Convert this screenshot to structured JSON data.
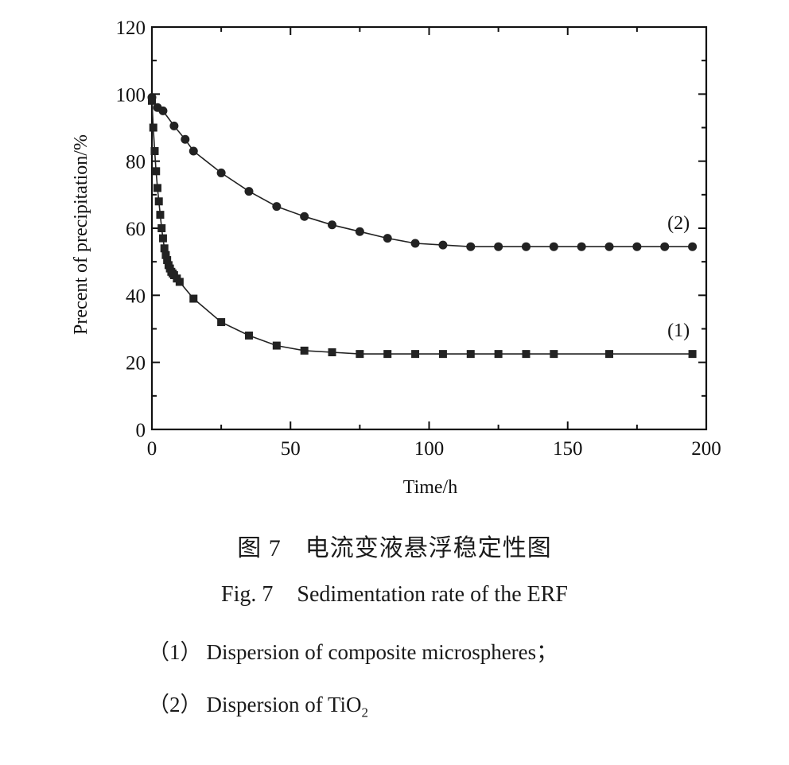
{
  "chart_data": {
    "type": "scatter",
    "xlabel": "Time/h",
    "ylabel": "Precent of precipitation/%",
    "xlim": [
      0,
      200
    ],
    "ylim": [
      0,
      120
    ],
    "xticks": [
      0,
      50,
      100,
      150,
      200
    ],
    "yticks": [
      0,
      20,
      40,
      60,
      80,
      100,
      120
    ],
    "grid": false,
    "series": [
      {
        "name": "(1)",
        "marker": "square",
        "color": "#222222",
        "x": [
          0,
          0.5,
          1,
          1.5,
          2,
          2.5,
          3,
          3.5,
          4,
          4.5,
          5,
          5.5,
          6,
          6.5,
          7,
          7.5,
          8,
          9,
          10,
          15,
          25,
          35,
          45,
          55,
          65,
          75,
          85,
          95,
          105,
          115,
          125,
          135,
          145,
          165,
          195
        ],
        "y": [
          98,
          90,
          83,
          77,
          72,
          68,
          64,
          60,
          57,
          54,
          52,
          50.5,
          49,
          48,
          47,
          46.5,
          46,
          45,
          44,
          39,
          32,
          28,
          25,
          23.5,
          23,
          22.5,
          22.5,
          22.5,
          22.5,
          22.5,
          22.5,
          22.5,
          22.5,
          22.5,
          22.5
        ],
        "label": "(1)"
      },
      {
        "name": "(2)",
        "marker": "circle",
        "color": "#222222",
        "x": [
          0,
          2,
          4,
          8,
          12,
          15,
          25,
          35,
          45,
          55,
          65,
          75,
          85,
          95,
          105,
          115,
          125,
          135,
          145,
          155,
          165,
          175,
          185,
          195
        ],
        "y": [
          99,
          96,
          95,
          90.5,
          86.5,
          83,
          76.5,
          71,
          66.5,
          63.5,
          61,
          59,
          57,
          55.5,
          55,
          54.5,
          54.5,
          54.5,
          54.5,
          54.5,
          54.5,
          54.5,
          54.5,
          54.5
        ],
        "label": "(2)"
      }
    ]
  },
  "captions": {
    "cn_num": "图 7",
    "cn_text": "电流变液悬浮稳定性图",
    "en_num": "Fig. 7",
    "en_text": "Sedimentation rate of the ERF",
    "legend1_mark": "（1）",
    "legend1_text": "Dispersion of composite microspheres；",
    "legend2_mark": "（2）",
    "legend2_text": "Dispersion of TiO",
    "legend2_sub": "2"
  }
}
